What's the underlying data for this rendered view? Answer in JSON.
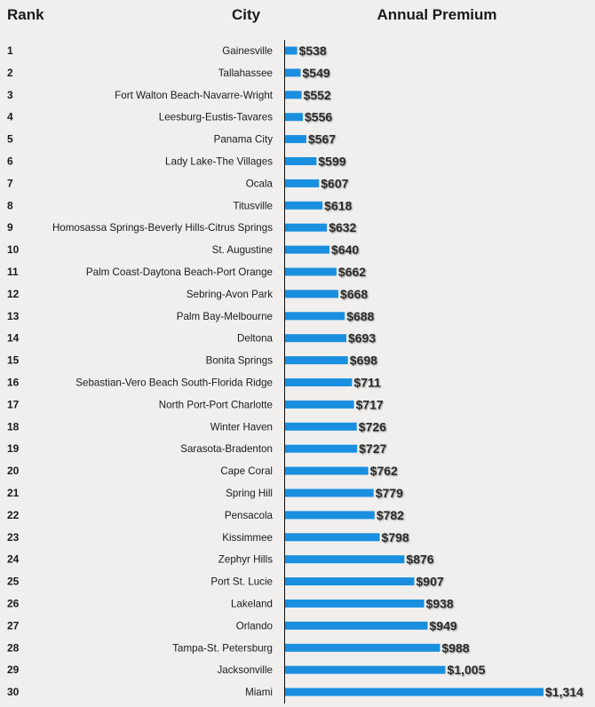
{
  "chart_data": {
    "type": "bar",
    "orientation": "horizontal",
    "headers": {
      "rank": "Rank",
      "city": "City",
      "value": "Annual Premium"
    },
    "ranks": [
      1,
      2,
      3,
      4,
      5,
      6,
      7,
      8,
      9,
      10,
      11,
      12,
      13,
      14,
      15,
      16,
      17,
      18,
      19,
      20,
      21,
      22,
      23,
      24,
      25,
      26,
      27,
      28,
      29,
      30
    ],
    "categories": [
      "Gainesville",
      "Tallahassee",
      "Fort Walton Beach-Navarre-Wright",
      "Leesburg-Eustis-Tavares",
      "Panama City",
      "Lady Lake-The Villages",
      "Ocala",
      "Titusville",
      "Homosassa Springs-Beverly Hills-Citrus Springs",
      "St. Augustine",
      "Palm Coast-Daytona Beach-Port Orange",
      "Sebring-Avon Park",
      "Palm Bay-Melbourne",
      "Deltona",
      "Bonita Springs",
      "Sebastian-Vero Beach South-Florida Ridge",
      "North Port-Port Charlotte",
      "Winter Haven",
      "Sarasota-Bradenton",
      "Cape Coral",
      "Spring Hill",
      "Pensacola",
      "Kissimmee",
      "Zephyr Hills",
      "Port St. Lucie",
      "Lakeland",
      "Orlando",
      "Tampa-St. Petersburg",
      "Jacksonville",
      "Miami"
    ],
    "values": [
      538,
      549,
      552,
      556,
      567,
      599,
      607,
      618,
      632,
      640,
      662,
      668,
      688,
      693,
      698,
      711,
      717,
      726,
      727,
      762,
      779,
      782,
      798,
      876,
      907,
      938,
      949,
      988,
      1005,
      1314
    ],
    "labels": [
      "$538",
      "$549",
      "$552",
      "$556",
      "$567",
      "$599",
      "$607",
      "$618",
      "$632",
      "$640",
      "$662",
      "$668",
      "$688",
      "$693",
      "$698",
      "$711",
      "$717",
      "$726",
      "$727",
      "$762",
      "$779",
      "$782",
      "$798",
      "$876",
      "$907",
      "$938",
      "$949",
      "$988",
      "$1,005",
      "$1,314"
    ],
    "xlim": [
      500,
      1314
    ],
    "bar_color": "#1a8fe0",
    "grid": false
  }
}
